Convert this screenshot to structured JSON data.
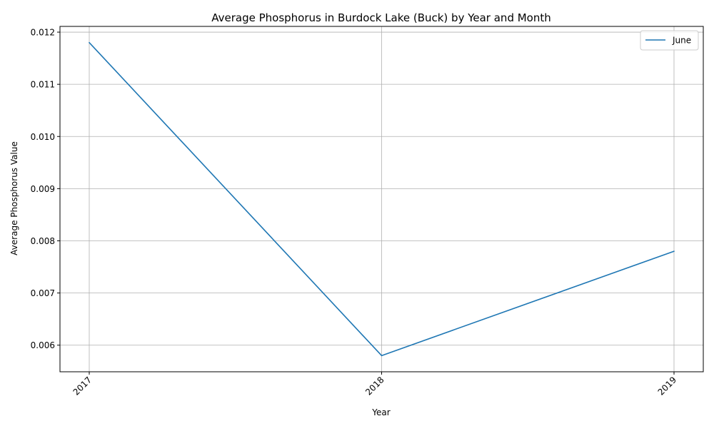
{
  "chart_data": {
    "type": "line",
    "title": "Average Phosphorus in Burdock Lake (Buck) by Year and Month",
    "xlabel": "Year",
    "ylabel": "Average Phosphorus Value",
    "x": [
      "2017",
      "2018",
      "2019"
    ],
    "series": [
      {
        "name": "June",
        "color": "#1f77b4",
        "values": [
          0.0118,
          0.0058,
          0.0078
        ]
      }
    ],
    "ylim": [
      0.00549,
      0.01211
    ],
    "yticks": [
      "0.006",
      "0.007",
      "0.008",
      "0.009",
      "0.010",
      "0.011",
      "0.012"
    ],
    "ytick_values": [
      0.006,
      0.007,
      0.008,
      0.009,
      0.01,
      0.011,
      0.012
    ],
    "grid": true,
    "legend_position": "top-right"
  }
}
